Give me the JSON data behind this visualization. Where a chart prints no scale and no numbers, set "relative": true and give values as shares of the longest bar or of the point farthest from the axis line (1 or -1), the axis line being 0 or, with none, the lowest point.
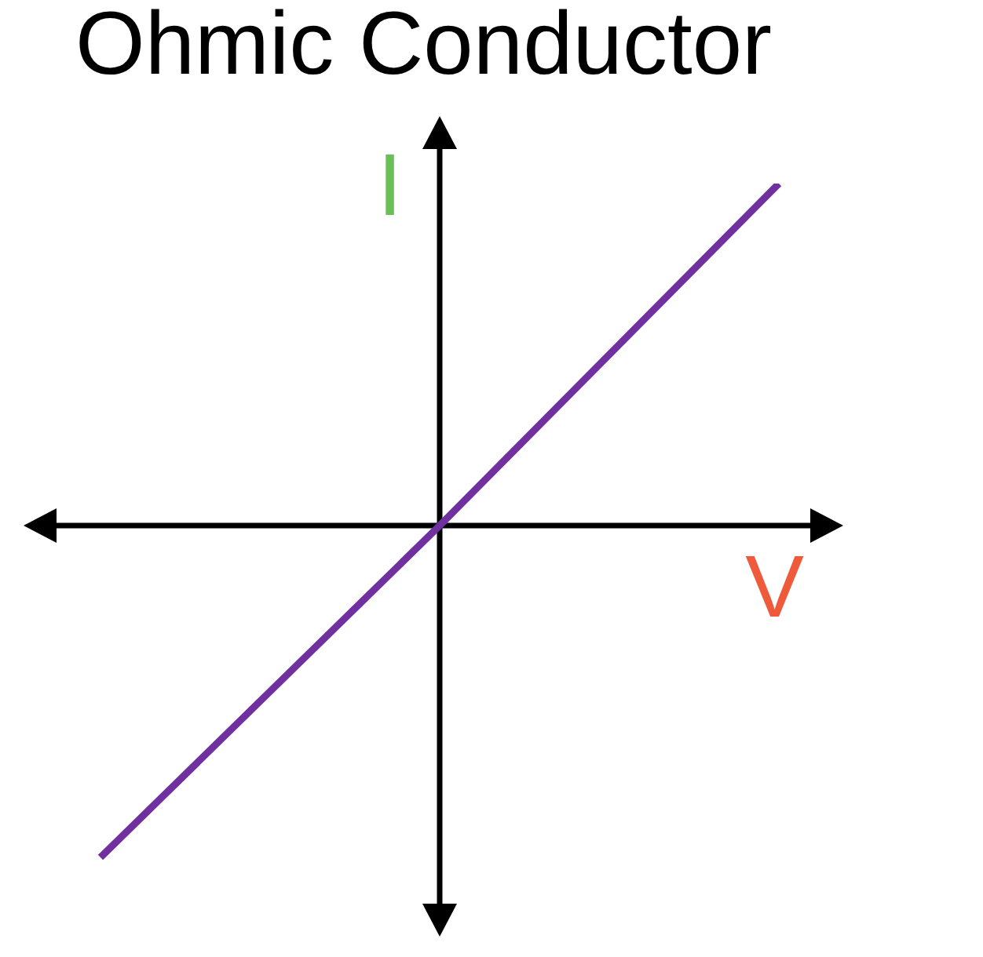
{
  "chart_data": {
    "type": "line",
    "title": "Ohmic Conductor",
    "xlabel": "V",
    "ylabel": "I",
    "categories": [
      null,
      null,
      null
    ],
    "series": [
      {
        "color": "#7030a0",
        "values": [
          -0.97,
          0,
          1
        ]
      }
    ],
    "relative": true,
    "marker": "none"
  }
}
